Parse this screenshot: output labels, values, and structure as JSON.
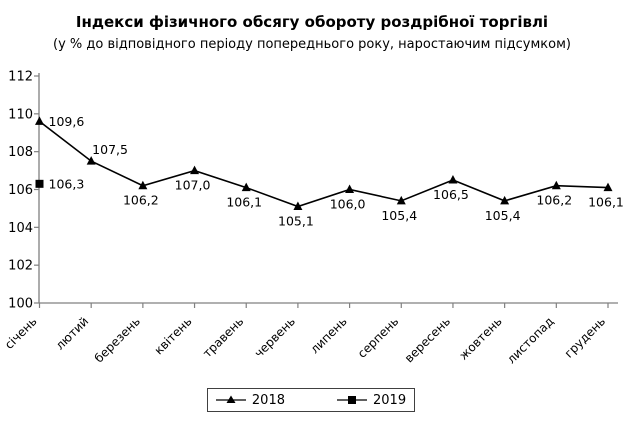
{
  "title": "Індекси фізичного обсягу обороту роздрібної торгівлі",
  "subtitle": "(у % до відповідного періоду попереднього року, наростаючим підсумком)",
  "colors": {
    "axis": "#808080",
    "series_line": "#000000",
    "text": "#000000",
    "background": "#ffffff"
  },
  "chart_data": {
    "type": "line",
    "title": "Індекси фізичного обсягу обороту роздрібної торгівлі",
    "subtitle": "(у % до відповідного періоду попереднього року, наростаючим підсумком)",
    "categories": [
      "січень",
      "лютий",
      "березень",
      "квітень",
      "травень",
      "червень",
      "липень",
      "серпень",
      "вересень",
      "жовтень",
      "листопад",
      "грудень"
    ],
    "series": [
      {
        "name": "2018",
        "marker": "triangle",
        "color": "#000000",
        "values": [
          109.6,
          107.5,
          106.2,
          107.0,
          106.1,
          105.1,
          106.0,
          105.4,
          106.5,
          105.4,
          106.2,
          106.1
        ],
        "point_labels": [
          "109,6",
          "107,5",
          "106,2",
          "107,0",
          "106,1",
          "105,1",
          "106,0",
          "105,4",
          "106,5",
          "105,4",
          "106,2",
          "106,1"
        ],
        "label_placement": [
          "right",
          "above",
          "below",
          "below",
          "below",
          "below",
          "below",
          "below",
          "below",
          "below",
          "below",
          "below"
        ]
      },
      {
        "name": "2019",
        "marker": "square",
        "color": "#000000",
        "values": [
          106.3,
          null,
          null,
          null,
          null,
          null,
          null,
          null,
          null,
          null,
          null,
          null
        ],
        "point_labels": [
          "106,3",
          null,
          null,
          null,
          null,
          null,
          null,
          null,
          null,
          null,
          null,
          null
        ],
        "label_placement": [
          "right",
          null,
          null,
          null,
          null,
          null,
          null,
          null,
          null,
          null,
          null,
          null
        ]
      }
    ],
    "ylim": [
      100,
      112
    ],
    "ytick_step": 2,
    "ytick_labels": [
      "100",
      "102",
      "104",
      "106",
      "108",
      "110",
      "112"
    ],
    "grid": false,
    "legend_position": "bottom-center",
    "decimal_separator": ","
  },
  "legend": {
    "items": [
      {
        "label": "2018",
        "marker": "triangle"
      },
      {
        "label": "2019",
        "marker": "square"
      }
    ]
  }
}
